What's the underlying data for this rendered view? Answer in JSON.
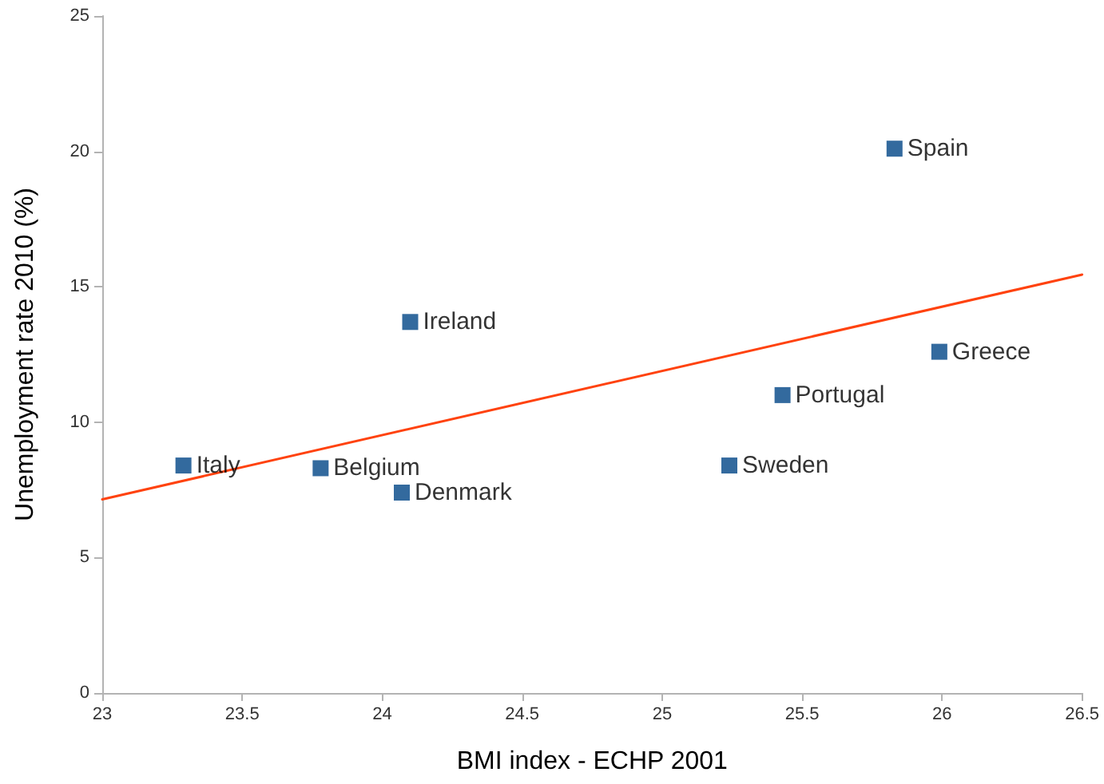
{
  "chart_data": {
    "type": "scatter",
    "xlabel": "BMI index - ECHP 2001",
    "ylabel": "Unemployment rate 2010 (%)",
    "xlim": [
      23,
      26.5
    ],
    "xticks": [
      23,
      23.5,
      24,
      24.5,
      25,
      25.5,
      26,
      26.5
    ],
    "ylim": [
      0,
      25
    ],
    "yticks": [
      0,
      5,
      10,
      15,
      20,
      25
    ],
    "grid": false,
    "marker": "square",
    "series": [
      {
        "color": "#004586",
        "x": [
          23.29,
          23.78,
          24.07,
          24.1,
          25.24,
          25.43,
          25.83,
          25.99
        ],
        "values": [
          8.4,
          8.3,
          7.4,
          13.7,
          8.4,
          11.0,
          20.1,
          12.6
        ]
      },
      {
        "type": "line",
        "marker": "none",
        "color": "#ff420e",
        "x": [
          23,
          26.5
        ],
        "values": [
          7.15,
          15.45
        ]
      }
    ],
    "annotations": [
      {
        "text": "Italy",
        "x": 23.29,
        "y": 8.4
      },
      {
        "text": "Belgium",
        "x": 23.78,
        "y": 8.3
      },
      {
        "text": "Denmark",
        "x": 24.07,
        "y": 7.4
      },
      {
        "text": "Ireland",
        "x": 24.1,
        "y": 13.7
      },
      {
        "text": "Sweden",
        "x": 25.24,
        "y": 8.4
      },
      {
        "text": "Portugal",
        "x": 25.43,
        "y": 11.0
      },
      {
        "text": "Spain",
        "x": 25.83,
        "y": 20.1
      },
      {
        "text": "Greece",
        "x": 25.99,
        "y": 12.6
      }
    ]
  }
}
